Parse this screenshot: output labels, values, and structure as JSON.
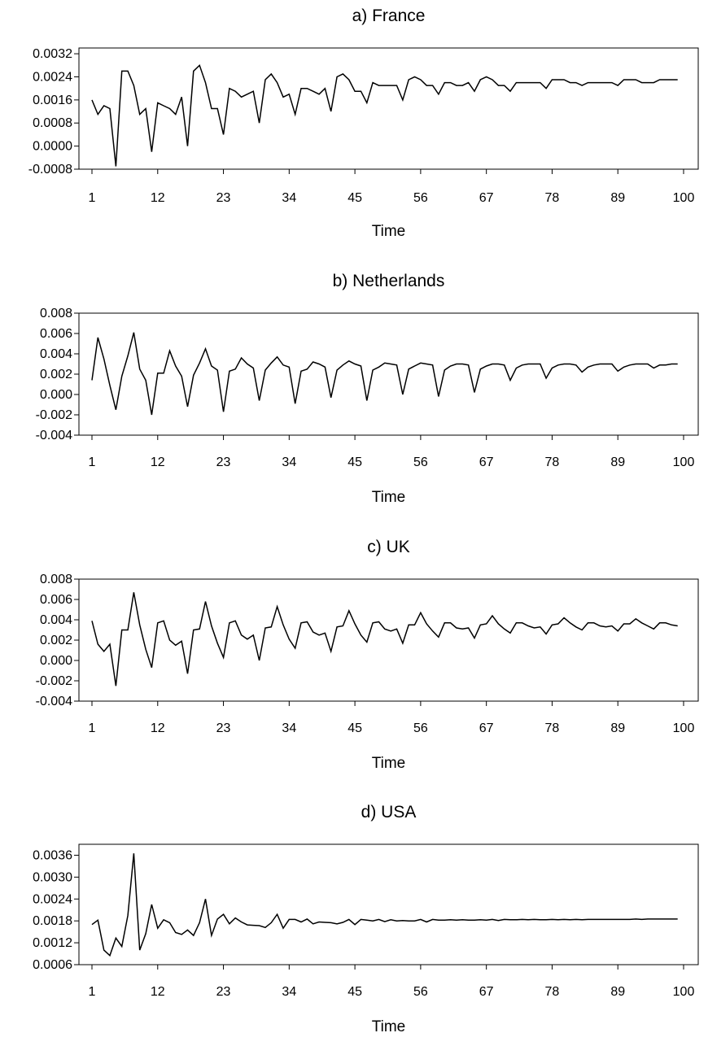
{
  "chart_data": [
    {
      "type": "line",
      "title": "a) France",
      "xlabel": "Time",
      "ylabel": "",
      "x_ticks": [
        "1",
        "12",
        "23",
        "34",
        "45",
        "56",
        "67",
        "78",
        "89",
        "100"
      ],
      "y_ticks": [
        "0.0032",
        "0.0024",
        "0.0016",
        "0.0008",
        "0.0000",
        "-0.0008"
      ],
      "xlim": [
        1,
        100
      ],
      "ylim": [
        -0.0008,
        0.0034
      ],
      "grid": false,
      "series": [
        {
          "x": [
            1,
            2,
            3,
            4,
            5,
            6,
            7,
            8,
            9,
            10,
            11,
            12,
            13,
            14,
            15,
            16,
            17,
            18,
            19,
            20,
            21,
            22,
            23,
            24,
            25,
            26,
            27,
            28,
            29,
            30,
            31,
            32,
            33,
            34,
            35,
            36,
            37,
            38,
            39,
            40,
            41,
            42,
            43,
            44,
            45,
            46,
            47,
            48,
            49,
            50,
            51,
            52,
            53,
            54,
            55,
            56,
            57,
            58,
            59,
            60,
            61,
            62,
            63,
            64,
            65,
            66,
            67,
            68,
            69,
            70,
            71,
            72,
            73,
            74,
            75,
            76,
            77,
            78,
            79,
            80,
            81,
            82,
            83,
            84,
            85,
            86,
            87,
            88,
            89,
            90,
            91,
            92,
            93,
            94,
            95,
            96,
            97,
            98,
            99
          ],
          "values": [
            0.0016,
            0.0011,
            0.0014,
            0.0013,
            -0.0007,
            0.0026,
            0.0026,
            0.0021,
            0.0011,
            0.0013,
            -0.0002,
            0.0015,
            0.0014,
            0.0013,
            0.0011,
            0.0017,
            0.0,
            0.0026,
            0.0028,
            0.0022,
            0.0013,
            0.0013,
            0.0004,
            0.002,
            0.0019,
            0.0017,
            0.0018,
            0.0019,
            0.0008,
            0.0023,
            0.0025,
            0.0022,
            0.0017,
            0.0018,
            0.0011,
            0.002,
            0.002,
            0.0019,
            0.0018,
            0.002,
            0.0012,
            0.0024,
            0.0025,
            0.0023,
            0.0019,
            0.0019,
            0.0015,
            0.0022,
            0.0021,
            0.0021,
            0.0021,
            0.0021,
            0.0016,
            0.0023,
            0.0024,
            0.0023,
            0.0021,
            0.0021,
            0.0018,
            0.0022,
            0.0022,
            0.0021,
            0.0021,
            0.0022,
            0.0019,
            0.0023,
            0.0024,
            0.0023,
            0.0021,
            0.0021,
            0.0019,
            0.0022,
            0.0022,
            0.0022,
            0.0022,
            0.0022,
            0.002,
            0.0023,
            0.0023,
            0.0023,
            0.0022,
            0.0022,
            0.0021,
            0.0022,
            0.0022,
            0.0022,
            0.0022,
            0.0022,
            0.0021,
            0.0023,
            0.0023,
            0.0023,
            0.0022,
            0.0022,
            0.0022,
            0.0023,
            0.0023,
            0.0023,
            0.0023
          ]
        }
      ]
    },
    {
      "type": "line",
      "title": "b) Netherlands",
      "xlabel": "Time",
      "ylabel": "",
      "x_ticks": [
        "1",
        "12",
        "23",
        "34",
        "45",
        "56",
        "67",
        "78",
        "89",
        "100"
      ],
      "y_ticks": [
        "0.008",
        "0.006",
        "0.004",
        "0.002",
        "0.000",
        "-0.002",
        "-0.004"
      ],
      "xlim": [
        1,
        100
      ],
      "ylim": [
        -0.004,
        0.008
      ],
      "grid": false,
      "series": [
        {
          "x": [
            1,
            2,
            3,
            4,
            5,
            6,
            7,
            8,
            9,
            10,
            11,
            12,
            13,
            14,
            15,
            16,
            17,
            18,
            19,
            20,
            21,
            22,
            23,
            24,
            25,
            26,
            27,
            28,
            29,
            30,
            31,
            32,
            33,
            34,
            35,
            36,
            37,
            38,
            39,
            40,
            41,
            42,
            43,
            44,
            45,
            46,
            47,
            48,
            49,
            50,
            51,
            52,
            53,
            54,
            55,
            56,
            57,
            58,
            59,
            60,
            61,
            62,
            63,
            64,
            65,
            66,
            67,
            68,
            69,
            70,
            71,
            72,
            73,
            74,
            75,
            76,
            77,
            78,
            79,
            80,
            81,
            82,
            83,
            84,
            85,
            86,
            87,
            88,
            89,
            90,
            91,
            92,
            93,
            94,
            95,
            96,
            97,
            98,
            99
          ],
          "values": [
            0.0014,
            0.0056,
            0.0035,
            0.0009,
            -0.0015,
            0.0018,
            0.0038,
            0.0061,
            0.0025,
            0.0014,
            -0.002,
            0.0021,
            0.0021,
            0.0043,
            0.0028,
            0.0018,
            -0.0012,
            0.0019,
            0.0031,
            0.0045,
            0.0028,
            0.0024,
            -0.0017,
            0.0023,
            0.0025,
            0.0036,
            0.003,
            0.0026,
            -0.0006,
            0.0024,
            0.0031,
            0.0037,
            0.0029,
            0.0027,
            -0.0009,
            0.0023,
            0.0025,
            0.0032,
            0.003,
            0.0027,
            -0.0003,
            0.0024,
            0.0029,
            0.0033,
            0.003,
            0.0028,
            -0.0006,
            0.0024,
            0.0027,
            0.0031,
            0.003,
            0.0029,
            0.0,
            0.0025,
            0.0028,
            0.0031,
            0.003,
            0.0029,
            -0.0002,
            0.0024,
            0.0028,
            0.003,
            0.003,
            0.0029,
            0.0002,
            0.0025,
            0.0028,
            0.003,
            0.003,
            0.0029,
            0.0014,
            0.0026,
            0.0029,
            0.003,
            0.003,
            0.003,
            0.0016,
            0.0026,
            0.0029,
            0.003,
            0.003,
            0.0029,
            0.0022,
            0.0027,
            0.0029,
            0.003,
            0.003,
            0.003,
            0.0023,
            0.0027,
            0.0029,
            0.003,
            0.003,
            0.003,
            0.0026,
            0.0029,
            0.0029,
            0.003,
            0.003
          ]
        }
      ]
    },
    {
      "type": "line",
      "title": "c) UK",
      "xlabel": "Time",
      "ylabel": "",
      "x_ticks": [
        "1",
        "12",
        "23",
        "34",
        "45",
        "56",
        "67",
        "78",
        "89",
        "100"
      ],
      "y_ticks": [
        "0.008",
        "0.006",
        "0.004",
        "0.002",
        "0.000",
        "-0.002",
        "-0.004"
      ],
      "xlim": [
        1,
        100
      ],
      "ylim": [
        -0.004,
        0.008
      ],
      "grid": false,
      "series": [
        {
          "x": [
            1,
            2,
            3,
            4,
            5,
            6,
            7,
            8,
            9,
            10,
            11,
            12,
            13,
            14,
            15,
            16,
            17,
            18,
            19,
            20,
            21,
            22,
            23,
            24,
            25,
            26,
            27,
            28,
            29,
            30,
            31,
            32,
            33,
            34,
            35,
            36,
            37,
            38,
            39,
            40,
            41,
            42,
            43,
            44,
            45,
            46,
            47,
            48,
            49,
            50,
            51,
            52,
            53,
            54,
            55,
            56,
            57,
            58,
            59,
            60,
            61,
            62,
            63,
            64,
            65,
            66,
            67,
            68,
            69,
            70,
            71,
            72,
            73,
            74,
            75,
            76,
            77,
            78,
            79,
            80,
            81,
            82,
            83,
            84,
            85,
            86,
            87,
            88,
            89,
            90,
            91,
            92,
            93,
            94,
            95,
            96,
            97,
            98,
            99
          ],
          "values": [
            0.0039,
            0.0016,
            0.0009,
            0.0016,
            -0.0025,
            0.003,
            0.003,
            0.0067,
            0.0035,
            0.0011,
            -0.0007,
            0.0037,
            0.0039,
            0.002,
            0.0015,
            0.0019,
            -0.0013,
            0.003,
            0.0031,
            0.0058,
            0.0034,
            0.0017,
            0.0003,
            0.0037,
            0.0039,
            0.0025,
            0.0021,
            0.0025,
            0.0,
            0.0032,
            0.0033,
            0.0053,
            0.0035,
            0.0021,
            0.0012,
            0.0037,
            0.0038,
            0.0028,
            0.0025,
            0.0027,
            0.0009,
            0.0033,
            0.0034,
            0.0049,
            0.0036,
            0.0025,
            0.0018,
            0.0037,
            0.0038,
            0.0031,
            0.0029,
            0.0031,
            0.0017,
            0.0035,
            0.0035,
            0.0047,
            0.0036,
            0.0029,
            0.0023,
            0.0037,
            0.0037,
            0.0032,
            0.0031,
            0.0032,
            0.0022,
            0.0035,
            0.0036,
            0.0044,
            0.0036,
            0.0031,
            0.0027,
            0.0037,
            0.0037,
            0.0034,
            0.0032,
            0.0033,
            0.0026,
            0.0035,
            0.0036,
            0.0042,
            0.0037,
            0.0033,
            0.003,
            0.0037,
            0.0037,
            0.0034,
            0.0033,
            0.0034,
            0.0029,
            0.0036,
            0.0036,
            0.0041,
            0.0037,
            0.0034,
            0.0031,
            0.0037,
            0.0037,
            0.0035,
            0.0034
          ]
        }
      ]
    },
    {
      "type": "line",
      "title": "d) USA",
      "xlabel": "Time",
      "ylabel": "",
      "x_ticks": [
        "1",
        "12",
        "23",
        "34",
        "45",
        "56",
        "67",
        "78",
        "89",
        "100"
      ],
      "y_ticks": [
        "0.0036",
        "0.0030",
        "0.0024",
        "0.0018",
        "0.0012",
        "0.0006"
      ],
      "xlim": [
        1,
        100
      ],
      "ylim": [
        0.0006,
        0.0039
      ],
      "grid": false,
      "series": [
        {
          "x": [
            1,
            2,
            3,
            4,
            5,
            6,
            7,
            8,
            9,
            10,
            11,
            12,
            13,
            14,
            15,
            16,
            17,
            18,
            19,
            20,
            21,
            22,
            23,
            24,
            25,
            26,
            27,
            28,
            29,
            30,
            31,
            32,
            33,
            34,
            35,
            36,
            37,
            38,
            39,
            40,
            41,
            42,
            43,
            44,
            45,
            46,
            47,
            48,
            49,
            50,
            51,
            52,
            53,
            54,
            55,
            56,
            57,
            58,
            59,
            60,
            61,
            62,
            63,
            64,
            65,
            66,
            67,
            68,
            69,
            70,
            71,
            72,
            73,
            74,
            75,
            76,
            77,
            78,
            79,
            80,
            81,
            82,
            83,
            84,
            85,
            86,
            87,
            88,
            89,
            90,
            91,
            92,
            93,
            94,
            95,
            96,
            97,
            98,
            99
          ],
          "values": [
            0.0017,
            0.00182,
            0.001,
            0.00085,
            0.00133,
            0.0011,
            0.00195,
            0.00365,
            0.001,
            0.00145,
            0.00225,
            0.0016,
            0.00183,
            0.00175,
            0.00148,
            0.00143,
            0.00155,
            0.0014,
            0.00175,
            0.0024,
            0.0014,
            0.00185,
            0.00198,
            0.00172,
            0.00188,
            0.00177,
            0.00169,
            0.00168,
            0.00167,
            0.00162,
            0.00175,
            0.00198,
            0.0016,
            0.00184,
            0.00184,
            0.00177,
            0.00185,
            0.00172,
            0.00177,
            0.00176,
            0.00175,
            0.00172,
            0.00176,
            0.00184,
            0.0017,
            0.00184,
            0.00182,
            0.0018,
            0.00184,
            0.00178,
            0.00183,
            0.0018,
            0.00181,
            0.0018,
            0.0018,
            0.00184,
            0.00177,
            0.00184,
            0.00182,
            0.00182,
            0.00183,
            0.00182,
            0.00183,
            0.00182,
            0.00182,
            0.00183,
            0.00182,
            0.00184,
            0.00181,
            0.00184,
            0.00183,
            0.00183,
            0.00184,
            0.00183,
            0.00184,
            0.00183,
            0.00183,
            0.00184,
            0.00183,
            0.00184,
            0.00183,
            0.00184,
            0.00183,
            0.00184,
            0.00184,
            0.00184,
            0.00184,
            0.00184,
            0.00184,
            0.00184,
            0.00184,
            0.00185,
            0.00184,
            0.00185,
            0.00185,
            0.00185,
            0.00185,
            0.00185,
            0.00185
          ]
        }
      ]
    }
  ]
}
